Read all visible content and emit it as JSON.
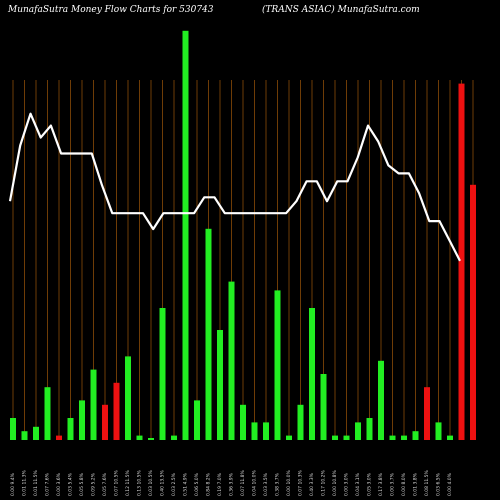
{
  "header": {
    "title_left": "MunafaSutra  Money Flow  Charts for 530743",
    "title_right": "(TRANS ASIAC) MunafaSutra.com"
  },
  "colors": {
    "background": "#000000",
    "grid": "#8a4b08",
    "up": "#22ee22",
    "down": "#ee1111",
    "line": "#ffffff"
  },
  "chart_data": {
    "type": "bar",
    "title": "MunafaSutra  Money Flow  Charts for 530743",
    "subtitle": "(TRANS ASIAC) MunafaSutra.com",
    "categories": [
      "Fri 26 Jul",
      "Thu 25 Jul",
      "Wed 24 Jul",
      "Tue 23 Jul",
      "Mon 22 Jul",
      "Fri 19 Jul",
      "Thu 18 Jul",
      "Wed 17 Jul",
      "Tue 16 Jul",
      "Mon 15 Jul",
      "Fri 12 Jul",
      "Thu 11 Jul",
      "Wed 10 Jul",
      "Tue 09 Jul",
      "Mon 08 Jul",
      "Fri 05 Jul",
      "Thu 04 Jul",
      "Wed 03 Jul",
      "Tue 02 Jul",
      "Mon 01 Jul",
      "Fri 28 Jun",
      "Thu 27 Jun",
      "Wed 26 Jun",
      "Tue 25 Jun",
      "Mon 24 Jun",
      "Fri 21 Jun",
      "Thu 20 Jun",
      "Wed 19 Jun",
      "Tue 18 Jun",
      "Fri 14 Jun",
      "Thu 13 Jun",
      "Wed 12 Jun",
      "Tue 11 Jun",
      "Mon 10 Jun",
      "Fri 07 Jun",
      "Thu 06 Jun",
      "Wed 05 Jun",
      "Tue 04 Jun",
      "Mon 03 Jun"
    ],
    "tick_labels": [
      "0.00 9.4%",
      "0.01 11.3%",
      "0.01 11.5%",
      "0.07 7.6%",
      "0.00 3.6%",
      "0.03 5.4%",
      "0.05 5.8%",
      "0.09 5.2%",
      "0.05 7.6%",
      "0.07 10.5%",
      "0.12 11.5%",
      "0.13 10.5%",
      "0.03 10.5%",
      "0.40 13.5%",
      "0.03 2.5%",
      "0.51 4.9%",
      "0.06 5.0%",
      "0.84 8.2%",
      "0.19 7.0%",
      "0.36 3.9%",
      "0.07 11.8%",
      "0.04 10.0%",
      "0.03 3.5%",
      "0.38 3.7%",
      "0.00 10.0%",
      "0.07 10.3%",
      "0.40 3.3%",
      "0.17 10.2%",
      "0.00 10.8%",
      "0.00 3.0%",
      "0.04 3.1%",
      "0.05 3.0%",
      "0.17 3.8%",
      "0.00 3.7%",
      "0.00 8.0%",
      "0.01 3.8%",
      "0.08 11.5%",
      "0.03 6.5%",
      "0.00 4.0%"
    ],
    "values": [
      5,
      2,
      3,
      12,
      1,
      5,
      9,
      16,
      8,
      13,
      19,
      1,
      0,
      30,
      1,
      93,
      9,
      48,
      25,
      36,
      8,
      4,
      4,
      34,
      1,
      8,
      30,
      15,
      1,
      1,
      4,
      5,
      18,
      1,
      1,
      2,
      12,
      4,
      1
    ],
    "direction": [
      "up",
      "up",
      "up",
      "up",
      "down",
      "up",
      "up",
      "up",
      "down",
      "down",
      "up",
      "up",
      "up",
      "up",
      "up",
      "up",
      "up",
      "up",
      "up",
      "up",
      "up",
      "up",
      "up",
      "up",
      "up",
      "up",
      "up",
      "up",
      "up",
      "up",
      "up",
      "up",
      "up",
      "up",
      "up",
      "up",
      "down",
      "up",
      "up"
    ],
    "extra_bars": [
      {
        "category": "",
        "value": 81,
        "direction": "down"
      },
      {
        "category": "",
        "value": 58,
        "direction": "down"
      }
    ],
    "price_line": [
      62,
      76,
      84,
      78,
      81,
      74,
      74,
      74,
      74,
      66,
      59,
      59,
      59,
      59,
      55,
      59,
      59,
      59,
      59,
      63,
      63,
      59,
      59,
      59,
      59,
      59,
      59,
      59,
      62,
      67,
      67,
      62,
      67,
      67,
      73,
      81,
      77,
      71,
      69,
      69,
      64,
      57,
      57,
      52,
      47
    ],
    "ylim": [
      0,
      100
    ],
    "grid": true,
    "legend": "none"
  }
}
